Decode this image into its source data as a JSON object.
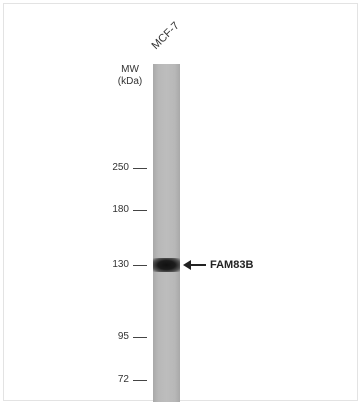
{
  "lane_label": "MCF-7",
  "mw_title_line1": "MW",
  "mw_title_line2": "(kDa)",
  "markers": [
    {
      "label": "250"
    },
    {
      "label": "180"
    },
    {
      "label": "130"
    },
    {
      "label": "95"
    },
    {
      "label": "72"
    }
  ],
  "target_label": "FAM83B"
}
